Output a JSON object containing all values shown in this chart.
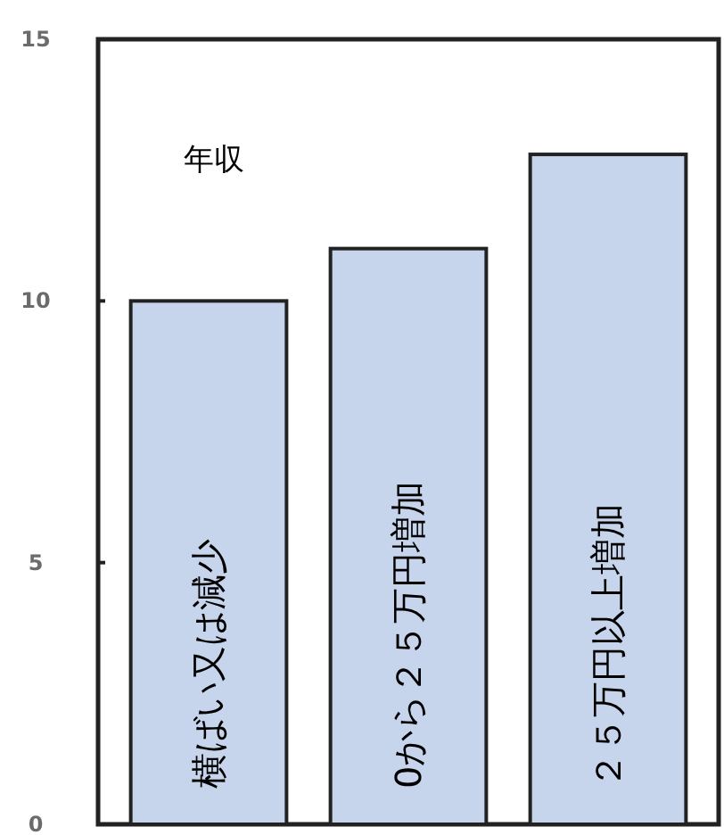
{
  "chart_data": {
    "type": "bar",
    "title": "年収",
    "categories": [
      "横ばい又は減少",
      "0から２５万円増加",
      "２５万円以上増加"
    ],
    "values": [
      10.0,
      11.0,
      12.8
    ],
    "color": "#c6d4ec",
    "ylim": [
      0,
      15
    ],
    "yticks": [
      0,
      5,
      10,
      15
    ],
    "grid": false
  }
}
